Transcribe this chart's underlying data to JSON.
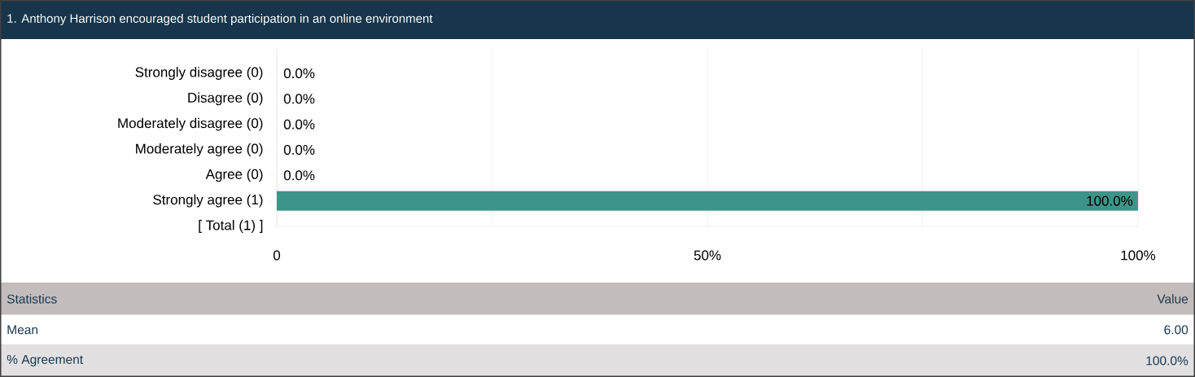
{
  "chart_data": {
    "type": "bar",
    "orientation": "horizontal",
    "title": "1. Anthony Harrison encouraged student participation in an online environment",
    "categories": [
      "Strongly disagree (0)",
      "Disagree (0)",
      "Moderately disagree (0)",
      "Moderately agree (0)",
      "Agree (0)",
      "Strongly agree (1)",
      "[ Total (1) ]"
    ],
    "values": [
      0,
      0,
      0,
      0,
      0,
      100,
      null
    ],
    "value_labels": [
      "0.0%",
      "0.0%",
      "0.0%",
      "0.0%",
      "0.0%",
      "100.0%",
      null
    ],
    "color": "#3e9489",
    "xlim": [
      0,
      100
    ],
    "xticks": [
      0,
      {
        "value": 25,
        "label": null
      },
      {
        "value": 50,
        "label": "50%"
      },
      {
        "value": 75,
        "label": null
      },
      {
        "value": 100,
        "label": "100%"
      }
    ],
    "grid": "x",
    "annotations": [
      "Statistics",
      "Value",
      "Mean",
      "6.00",
      "% Agreement",
      "100.0%"
    ]
  }
}
